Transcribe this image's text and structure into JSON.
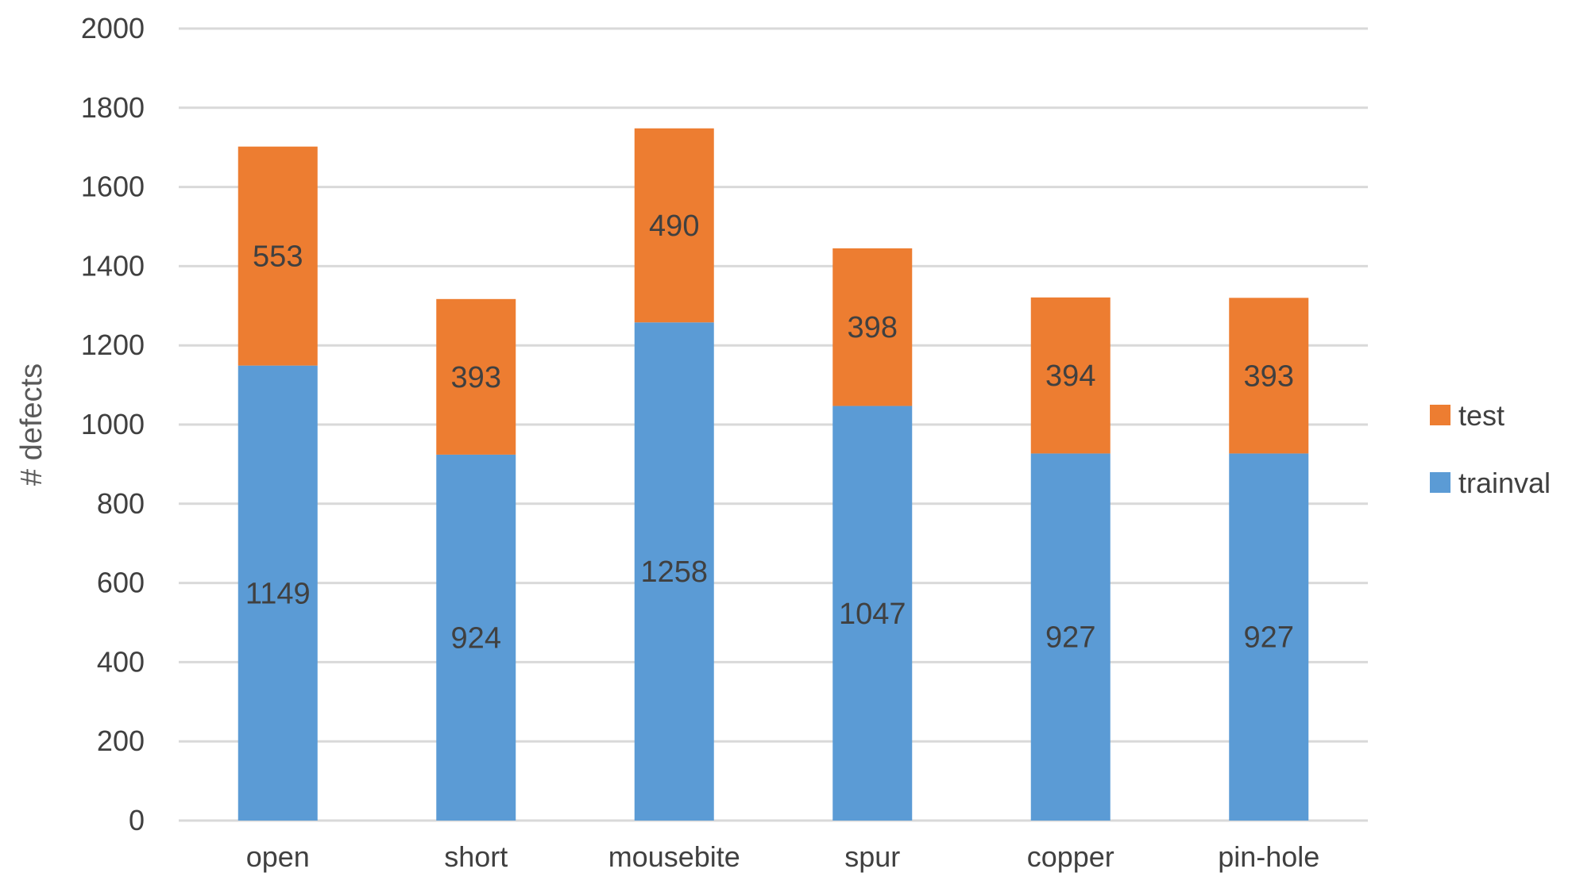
{
  "chart_data": {
    "type": "bar",
    "stacked": true,
    "categories": [
      "open",
      "short",
      "mousebite",
      "spur",
      "copper",
      "pin-hole"
    ],
    "series": [
      {
        "name": "trainval",
        "values": [
          1149,
          924,
          1258,
          1047,
          927,
          927
        ],
        "color": "#5B9BD5"
      },
      {
        "name": "test",
        "values": [
          553,
          393,
          490,
          398,
          394,
          393
        ],
        "color": "#ED7D31"
      }
    ],
    "ylabel": "# defects",
    "xlabel": "",
    "title": "",
    "ylim": [
      0,
      2000
    ],
    "yticks": [
      0,
      200,
      400,
      600,
      800,
      1000,
      1200,
      1400,
      1600,
      1800,
      2000
    ],
    "grid": true,
    "gridColor": "#D9D9D9",
    "legend": {
      "position": "right",
      "order": [
        "test",
        "trainval"
      ]
    }
  }
}
